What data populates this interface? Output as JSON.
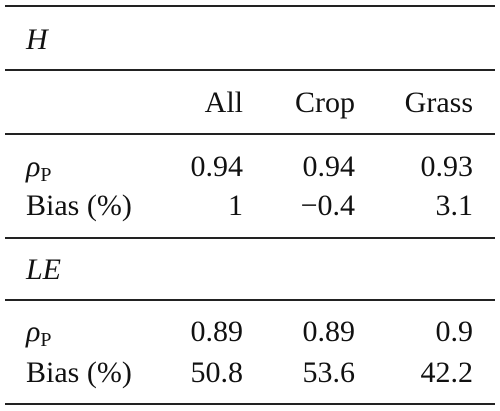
{
  "table": {
    "columns": [
      "All",
      "Crop",
      "Grass"
    ],
    "sections": [
      {
        "title": "H",
        "rows": [
          {
            "label_symbol": "ρ",
            "label_subscript": "P",
            "values": [
              "0.94",
              "0.94",
              "0.93"
            ]
          },
          {
            "label": "Bias (%)",
            "values": [
              "1",
              "−0.4",
              "3.1"
            ]
          }
        ]
      },
      {
        "title": "LE",
        "rows": [
          {
            "label_symbol": "ρ",
            "label_subscript": "P",
            "values": [
              "0.89",
              "0.89",
              "0.9"
            ]
          },
          {
            "label": "Bias (%)",
            "values": [
              "50.8",
              "53.6",
              "42.2"
            ]
          }
        ]
      }
    ]
  }
}
